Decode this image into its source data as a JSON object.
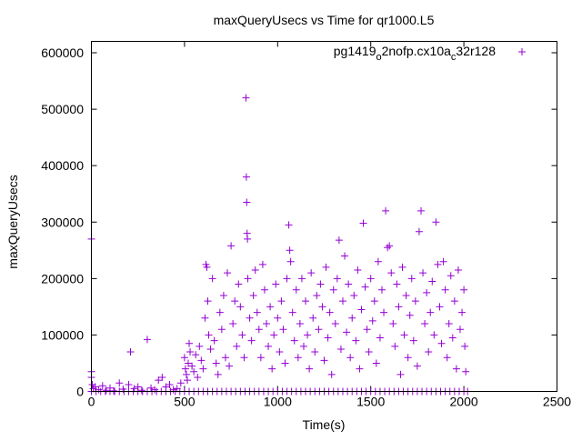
{
  "chart_data": {
    "type": "scatter",
    "title": "maxQueryUsecs vs Time for qr1000.L5",
    "xlabel": "Time(s)",
    "ylabel": "maxQueryUsecs",
    "xlim": [
      0,
      2500
    ],
    "ylim": [
      0,
      600000
    ],
    "xticks": [
      0,
      500,
      1000,
      1500,
      2000,
      2500
    ],
    "yticks": [
      0,
      100000,
      200000,
      300000,
      400000,
      500000,
      600000
    ],
    "xtick_labels": [
      "0",
      "500",
      "1000",
      "1500",
      "2000",
      "2500"
    ],
    "ytick_labels": [
      "0",
      "100000",
      "200000",
      "300000",
      "400000",
      "500000",
      "600000"
    ],
    "grid": false,
    "legend_placement": "top-right",
    "series": [
      {
        "name": "pg1419_o2nofp.cx10a_c32r128",
        "name_parts": [
          "pg1419",
          "o",
          "2nofp.cx10a",
          "c",
          "32r128"
        ],
        "color": "#9400d3",
        "points": [
          [
            0,
            270000
          ],
          [
            0,
            35000
          ],
          [
            0,
            25000
          ],
          [
            5,
            12000
          ],
          [
            10,
            5000
          ],
          [
            20,
            8000
          ],
          [
            40,
            3000
          ],
          [
            60,
            10000
          ],
          [
            80,
            2000
          ],
          [
            100,
            6000
          ],
          [
            120,
            1000
          ],
          [
            150,
            15000
          ],
          [
            170,
            4000
          ],
          [
            200,
            12000
          ],
          [
            210,
            70000
          ],
          [
            230,
            5000
          ],
          [
            250,
            8000
          ],
          [
            270,
            2000
          ],
          [
            300,
            92000
          ],
          [
            320,
            6000
          ],
          [
            340,
            3000
          ],
          [
            360,
            20000
          ],
          [
            380,
            25000
          ],
          [
            400,
            8000
          ],
          [
            420,
            12000
          ],
          [
            440,
            3000
          ],
          [
            460,
            5000
          ],
          [
            480,
            15000
          ],
          [
            500,
            60000
          ],
          [
            505,
            40000
          ],
          [
            510,
            30000
          ],
          [
            515,
            20000
          ],
          [
            520,
            50000
          ],
          [
            525,
            85000
          ],
          [
            530,
            70000
          ],
          [
            540,
            45000
          ],
          [
            550,
            35000
          ],
          [
            560,
            65000
          ],
          [
            570,
            25000
          ],
          [
            580,
            80000
          ],
          [
            590,
            55000
          ],
          [
            600,
            40000
          ],
          [
            610,
            130000
          ],
          [
            615,
            225000
          ],
          [
            620,
            220000
          ],
          [
            625,
            160000
          ],
          [
            630,
            100000
          ],
          [
            640,
            75000
          ],
          [
            650,
            200000
          ],
          [
            660,
            90000
          ],
          [
            670,
            50000
          ],
          [
            680,
            30000
          ],
          [
            690,
            140000
          ],
          [
            700,
            110000
          ],
          [
            710,
            170000
          ],
          [
            720,
            60000
          ],
          [
            730,
            210000
          ],
          [
            740,
            45000
          ],
          [
            750,
            258000
          ],
          [
            760,
            120000
          ],
          [
            770,
            160000
          ],
          [
            780,
            80000
          ],
          [
            790,
            190000
          ],
          [
            800,
            150000
          ],
          [
            810,
            100000
          ],
          [
            820,
            60000
          ],
          [
            830,
            520000
          ],
          [
            832,
            380000
          ],
          [
            834,
            335000
          ],
          [
            836,
            280000
          ],
          [
            838,
            270000
          ],
          [
            840,
            200000
          ],
          [
            850,
            130000
          ],
          [
            860,
            90000
          ],
          [
            870,
            170000
          ],
          [
            880,
            215000
          ],
          [
            890,
            140000
          ],
          [
            900,
            110000
          ],
          [
            910,
            60000
          ],
          [
            920,
            225000
          ],
          [
            930,
            180000
          ],
          [
            940,
            120000
          ],
          [
            950,
            80000
          ],
          [
            960,
            150000
          ],
          [
            970,
            40000
          ],
          [
            980,
            100000
          ],
          [
            990,
            190000
          ],
          [
            1000,
            130000
          ],
          [
            1010,
            70000
          ],
          [
            1020,
            160000
          ],
          [
            1030,
            110000
          ],
          [
            1040,
            50000
          ],
          [
            1050,
            200000
          ],
          [
            1060,
            295000
          ],
          [
            1065,
            250000
          ],
          [
            1070,
            230000
          ],
          [
            1080,
            140000
          ],
          [
            1090,
            90000
          ],
          [
            1100,
            180000
          ],
          [
            1110,
            60000
          ],
          [
            1120,
            120000
          ],
          [
            1130,
            200000
          ],
          [
            1140,
            80000
          ],
          [
            1150,
            160000
          ],
          [
            1160,
            100000
          ],
          [
            1170,
            40000
          ],
          [
            1180,
            210000
          ],
          [
            1190,
            130000
          ],
          [
            1200,
            70000
          ],
          [
            1210,
            170000
          ],
          [
            1220,
            110000
          ],
          [
            1230,
            190000
          ],
          [
            1240,
            150000
          ],
          [
            1250,
            55000
          ],
          [
            1260,
            220000
          ],
          [
            1270,
            95000
          ],
          [
            1280,
            140000
          ],
          [
            1290,
            30000
          ],
          [
            1300,
            180000
          ],
          [
            1310,
            120000
          ],
          [
            1320,
            200000
          ],
          [
            1330,
            268000
          ],
          [
            1340,
            75000
          ],
          [
            1350,
            160000
          ],
          [
            1360,
            240000
          ],
          [
            1370,
            105000
          ],
          [
            1380,
            190000
          ],
          [
            1390,
            60000
          ],
          [
            1400,
            130000
          ],
          [
            1410,
            170000
          ],
          [
            1420,
            90000
          ],
          [
            1430,
            215000
          ],
          [
            1440,
            40000
          ],
          [
            1450,
            145000
          ],
          [
            1460,
            298000
          ],
          [
            1470,
            185000
          ],
          [
            1480,
            110000
          ],
          [
            1490,
            70000
          ],
          [
            1500,
            200000
          ],
          [
            1510,
            125000
          ],
          [
            1520,
            160000
          ],
          [
            1530,
            50000
          ],
          [
            1540,
            230000
          ],
          [
            1550,
            95000
          ],
          [
            1560,
            180000
          ],
          [
            1570,
            140000
          ],
          [
            1580,
            320000
          ],
          [
            1590,
            255000
          ],
          [
            1600,
            258000
          ],
          [
            1610,
            210000
          ],
          [
            1620,
            120000
          ],
          [
            1630,
            80000
          ],
          [
            1640,
            190000
          ],
          [
            1650,
            150000
          ],
          [
            1660,
            30000
          ],
          [
            1670,
            220000
          ],
          [
            1680,
            100000
          ],
          [
            1690,
            170000
          ],
          [
            1700,
            60000
          ],
          [
            1710,
            135000
          ],
          [
            1720,
            200000
          ],
          [
            1730,
            90000
          ],
          [
            1740,
            160000
          ],
          [
            1750,
            45000
          ],
          [
            1760,
            283000
          ],
          [
            1770,
            320000
          ],
          [
            1780,
            210000
          ],
          [
            1790,
            120000
          ],
          [
            1800,
            175000
          ],
          [
            1810,
            70000
          ],
          [
            1820,
            140000
          ],
          [
            1830,
            195000
          ],
          [
            1840,
            100000
          ],
          [
            1850,
            300000
          ],
          [
            1860,
            225000
          ],
          [
            1870,
            150000
          ],
          [
            1880,
            85000
          ],
          [
            1890,
            230000
          ],
          [
            1900,
            180000
          ],
          [
            1910,
            60000
          ],
          [
            1920,
            120000
          ],
          [
            1930,
            205000
          ],
          [
            1940,
            95000
          ],
          [
            1950,
            160000
          ],
          [
            1960,
            40000
          ],
          [
            1970,
            215000
          ],
          [
            1980,
            110000
          ],
          [
            1990,
            140000
          ],
          [
            2000,
            180000
          ],
          [
            2005,
            80000
          ],
          [
            2010,
            35000
          ],
          [
            0,
            0
          ],
          [
            25,
            0
          ],
          [
            50,
            0
          ],
          [
            75,
            0
          ],
          [
            100,
            0
          ],
          [
            125,
            0
          ],
          [
            150,
            0
          ],
          [
            175,
            0
          ],
          [
            200,
            0
          ],
          [
            225,
            0
          ],
          [
            250,
            0
          ],
          [
            275,
            0
          ],
          [
            300,
            0
          ],
          [
            325,
            0
          ],
          [
            350,
            0
          ],
          [
            375,
            0
          ],
          [
            400,
            0
          ],
          [
            425,
            0
          ],
          [
            450,
            0
          ],
          [
            475,
            0
          ],
          [
            500,
            0
          ],
          [
            525,
            0
          ],
          [
            550,
            0
          ],
          [
            575,
            0
          ],
          [
            600,
            0
          ],
          [
            625,
            0
          ],
          [
            650,
            0
          ],
          [
            675,
            0
          ],
          [
            700,
            0
          ],
          [
            725,
            0
          ],
          [
            750,
            0
          ],
          [
            775,
            0
          ],
          [
            800,
            0
          ],
          [
            825,
            0
          ],
          [
            850,
            0
          ],
          [
            875,
            0
          ],
          [
            900,
            0
          ],
          [
            925,
            0
          ],
          [
            950,
            0
          ],
          [
            975,
            0
          ],
          [
            1000,
            0
          ],
          [
            1025,
            0
          ],
          [
            1050,
            0
          ],
          [
            1075,
            0
          ],
          [
            1100,
            0
          ],
          [
            1125,
            0
          ],
          [
            1150,
            0
          ],
          [
            1175,
            0
          ],
          [
            1200,
            0
          ],
          [
            1225,
            0
          ],
          [
            1250,
            0
          ],
          [
            1275,
            0
          ],
          [
            1300,
            0
          ],
          [
            1325,
            0
          ],
          [
            1350,
            0
          ],
          [
            1375,
            0
          ],
          [
            1400,
            0
          ],
          [
            1425,
            0
          ],
          [
            1450,
            0
          ],
          [
            1475,
            0
          ],
          [
            1500,
            0
          ],
          [
            1525,
            0
          ],
          [
            1550,
            0
          ],
          [
            1575,
            0
          ],
          [
            1600,
            0
          ],
          [
            1625,
            0
          ],
          [
            1650,
            0
          ],
          [
            1675,
            0
          ],
          [
            1700,
            0
          ],
          [
            1725,
            0
          ],
          [
            1750,
            0
          ],
          [
            1775,
            0
          ],
          [
            1800,
            0
          ],
          [
            1825,
            0
          ],
          [
            1850,
            0
          ],
          [
            1875,
            0
          ],
          [
            1900,
            0
          ],
          [
            1925,
            0
          ],
          [
            1950,
            0
          ],
          [
            1975,
            0
          ],
          [
            2000,
            0
          ],
          [
            2020,
            0
          ]
        ]
      }
    ]
  }
}
